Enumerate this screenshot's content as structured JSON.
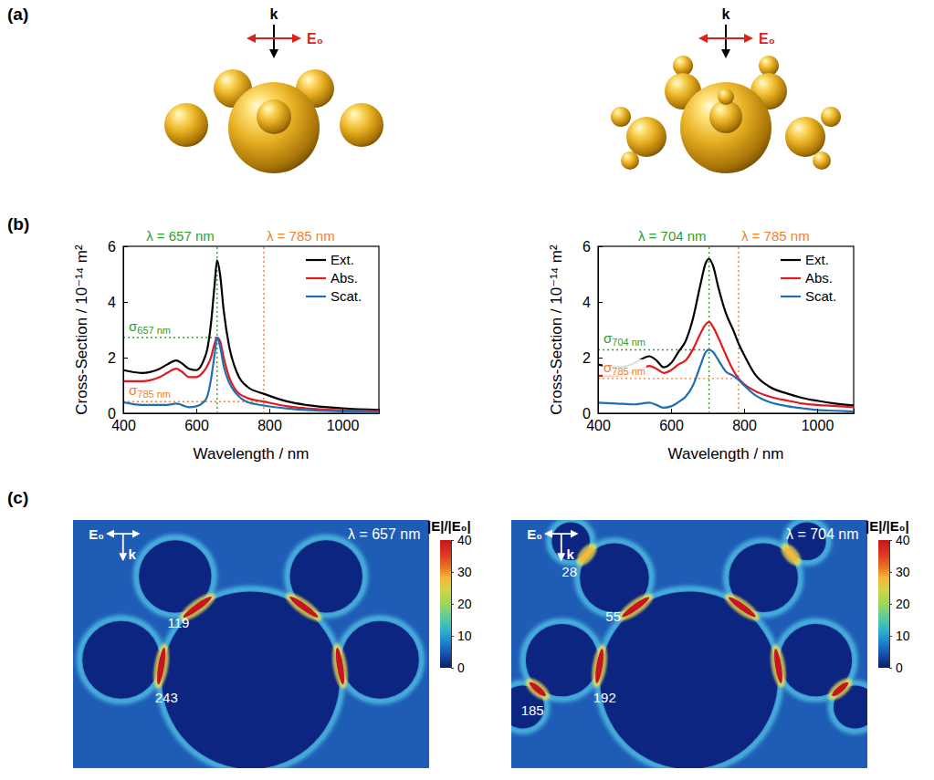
{
  "panel_labels": [
    "(a)",
    "(b)",
    "(c)"
  ],
  "structures": [
    {
      "k_label": "k",
      "field_label": "E₀"
    },
    {
      "k_label": "k",
      "field_label": "E₀"
    }
  ],
  "chart_data": [
    {
      "type": "line",
      "xlabel": "Wavelength / nm",
      "ylabel": "Cross-Section / 10⁻¹⁴ m²",
      "x": [
        400,
        450,
        500,
        520,
        545,
        560,
        580,
        600,
        620,
        630,
        640,
        650,
        657,
        665,
        675,
        690,
        710,
        740,
        785,
        850,
        900,
        1000,
        1100
      ],
      "series": [
        {
          "name": "Ext.",
          "color": "#000000",
          "values": [
            1.55,
            1.45,
            1.6,
            1.75,
            1.9,
            1.8,
            1.6,
            1.55,
            1.9,
            2.3,
            3.2,
            4.6,
            5.5,
            5.0,
            3.7,
            2.4,
            1.5,
            0.95,
            0.7,
            0.42,
            0.3,
            0.18,
            0.12
          ]
        },
        {
          "name": "Abs.",
          "color": "#e31a1c",
          "values": [
            1.15,
            1.15,
            1.3,
            1.45,
            1.6,
            1.5,
            1.3,
            1.3,
            1.5,
            1.7,
            2.0,
            2.5,
            2.72,
            2.6,
            2.0,
            1.3,
            0.8,
            0.55,
            0.42,
            0.25,
            0.18,
            0.11,
            0.08
          ]
        },
        {
          "name": "Scat.",
          "color": "#1f6fb8",
          "values": [
            0.4,
            0.3,
            0.3,
            0.3,
            0.35,
            0.3,
            0.22,
            0.25,
            0.4,
            0.6,
            1.2,
            2.1,
            2.72,
            2.4,
            1.7,
            1.1,
            0.7,
            0.4,
            0.28,
            0.17,
            0.12,
            0.07,
            0.04
          ]
        }
      ],
      "xlim": [
        400,
        1100
      ],
      "xticks": [
        400,
        600,
        800,
        1000
      ],
      "ylim": [
        0,
        6
      ],
      "yticks": [
        0,
        2,
        4,
        6
      ],
      "legend": "upper right",
      "vlines": [
        {
          "x": 657,
          "label": "λ = 657 nm",
          "color": "#2ca02c"
        },
        {
          "x": 785,
          "label": "λ = 785 nm",
          "color": "#f07f2f"
        }
      ],
      "hlines": [
        {
          "y": 2.72,
          "x_end": 657,
          "label": "σ",
          "subscript": "657 nm",
          "color": "#2ca02c"
        },
        {
          "y": 0.42,
          "x_end": 785,
          "label": "σ",
          "subscript": "785 nm",
          "color": "#f07f2f"
        }
      ]
    },
    {
      "type": "line",
      "xlabel": "Wavelength / nm",
      "ylabel": "Cross-Section / 10⁻¹⁴ m²",
      "x": [
        400,
        450,
        500,
        520,
        540,
        560,
        580,
        600,
        620,
        640,
        660,
        680,
        695,
        704,
        715,
        730,
        750,
        770,
        785,
        800,
        830,
        870,
        920,
        960,
        1000,
        1050,
        1100
      ],
      "series": [
        {
          "name": "Ext.",
          "color": "#000000",
          "values": [
            1.75,
            1.65,
            1.8,
            1.95,
            2.05,
            1.9,
            1.65,
            1.8,
            2.2,
            2.6,
            3.4,
            4.6,
            5.4,
            5.55,
            5.3,
            4.5,
            3.6,
            3.0,
            2.5,
            2.1,
            1.4,
            0.95,
            0.7,
            0.55,
            0.45,
            0.35,
            0.28
          ]
        },
        {
          "name": "Abs.",
          "color": "#e31a1c",
          "values": [
            1.35,
            1.35,
            1.5,
            1.6,
            1.7,
            1.6,
            1.45,
            1.55,
            1.75,
            1.9,
            2.3,
            2.85,
            3.2,
            3.28,
            3.1,
            2.7,
            2.1,
            1.55,
            1.25,
            1.05,
            0.8,
            0.6,
            0.45,
            0.35,
            0.3,
            0.26,
            0.22
          ]
        },
        {
          "name": "Scat.",
          "color": "#1f6fb8",
          "values": [
            0.38,
            0.35,
            0.32,
            0.35,
            0.38,
            0.3,
            0.2,
            0.25,
            0.4,
            0.6,
            1.0,
            1.7,
            2.2,
            2.28,
            2.2,
            1.9,
            1.5,
            1.35,
            1.2,
            1.0,
            0.65,
            0.4,
            0.25,
            0.18,
            0.12,
            0.09,
            0.06
          ]
        }
      ],
      "xlim": [
        400,
        1100
      ],
      "xticks": [
        400,
        600,
        800,
        1000
      ],
      "ylim": [
        0,
        6
      ],
      "yticks": [
        0,
        2,
        4,
        6
      ],
      "legend": "upper right",
      "vlines": [
        {
          "x": 704,
          "label": "λ = 704 nm",
          "color": "#2ca02c"
        },
        {
          "x": 785,
          "label": "λ = 785 nm",
          "color": "#f07f2f"
        }
      ],
      "hlines": [
        {
          "y": 2.28,
          "x_end": 704,
          "label": "σ",
          "subscript": "704 nm",
          "color": "#2ca02c"
        },
        {
          "y": 1.25,
          "x_end": 785,
          "label": "σ",
          "subscript": "785 nm",
          "color": "#f07f2f"
        }
      ]
    }
  ],
  "field_maps": [
    {
      "wavelength_label": "λ = 657 nm",
      "k_label": "k",
      "field_label": "E₀",
      "colorbar": {
        "title": "|E|/|E₀|",
        "range": [
          0,
          40
        ],
        "ticks": [
          0,
          10,
          20,
          30,
          40
        ]
      },
      "values": [
        119,
        243
      ]
    },
    {
      "wavelength_label": "λ = 704 nm",
      "k_label": "k",
      "field_label": "E₀",
      "colorbar": {
        "title": "|E|/|E₀|",
        "range": [
          0,
          40
        ],
        "ticks": [
          0,
          10,
          20,
          30,
          40
        ]
      },
      "values": [
        28,
        55,
        185,
        192
      ]
    }
  ]
}
